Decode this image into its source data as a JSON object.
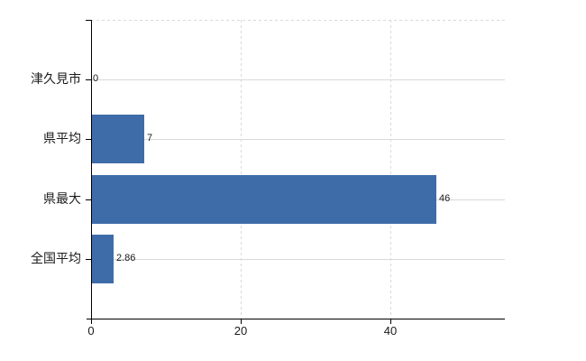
{
  "chart_data": {
    "type": "bar",
    "orientation": "horizontal",
    "title": "",
    "xlabel": "",
    "ylabel": "",
    "categories": [
      "津久見市",
      "県平均",
      "県最大",
      "全国平均"
    ],
    "values": [
      0,
      7,
      46,
      2.86
    ],
    "value_labels": [
      "0",
      "7",
      "46",
      "2.86"
    ],
    "xticks": [
      0,
      20,
      40
    ],
    "xlim": [
      0,
      55.3
    ],
    "grid": {
      "horizontal": "solid line at each category center",
      "vertical": "dashed lines at x ticks 20 and 40",
      "top_border": "dashed"
    },
    "legend": false,
    "colors": {
      "bar": "#3e6ca8",
      "grid": "#d9d9d9",
      "axis": "#000000",
      "text": "#1b1b1b"
    }
  }
}
